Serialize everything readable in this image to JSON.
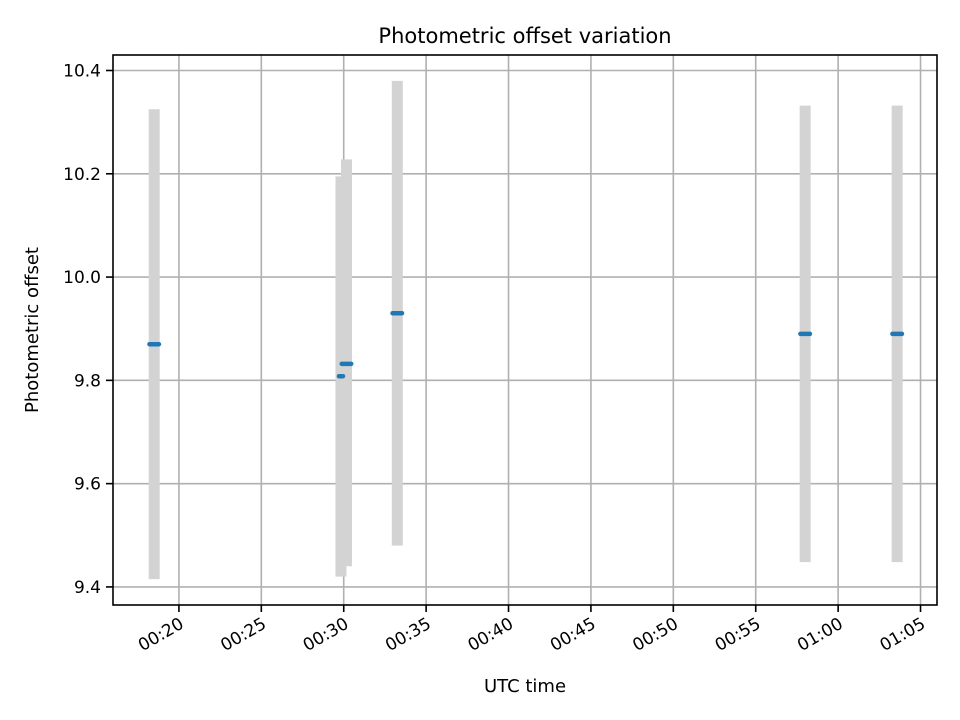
{
  "chart_data": {
    "type": "scatter",
    "title": "Photometric offset variation",
    "xlabel": "UTC time",
    "ylabel": "Photometric offset",
    "grid": true,
    "x_axis": {
      "type": "time",
      "range": [
        "00:16:00",
        "01:06:00"
      ],
      "ticks": [
        "00:20",
        "00:25",
        "00:30",
        "00:35",
        "00:40",
        "00:45",
        "00:50",
        "00:55",
        "01:00",
        "01:05"
      ]
    },
    "y_axis": {
      "range": [
        9.365,
        10.43
      ],
      "ticks": [
        "9.4",
        "9.6",
        "9.8",
        "10.0",
        "10.2",
        "10.4"
      ]
    },
    "colors": {
      "point": "#1f77b4",
      "errorbar": "#d3d3d3",
      "grid": "#b0b0b0"
    },
    "series": [
      {
        "points": [
          {
            "x_start": "00:18:20",
            "x_end": "00:18:40",
            "y": 9.87,
            "y_low": 9.415,
            "y_high": 10.325
          },
          {
            "x_start": "00:29:50",
            "x_end": "00:29:50",
            "y": 9.808,
            "y_low": 9.42,
            "y_high": 10.195
          },
          {
            "x_start": "00:30:00",
            "x_end": "00:30:20",
            "y": 9.832,
            "y_low": 9.44,
            "y_high": 10.228
          },
          {
            "x_start": "00:33:05",
            "x_end": "00:33:25",
            "y": 9.93,
            "y_low": 9.48,
            "y_high": 10.38
          },
          {
            "x_start": "00:57:50",
            "x_end": "00:58:10",
            "y": 9.89,
            "y_low": 9.448,
            "y_high": 10.332
          },
          {
            "x_start": "01:03:25",
            "x_end": "01:03:45",
            "y": 9.89,
            "y_low": 9.448,
            "y_high": 10.332
          }
        ]
      }
    ]
  }
}
